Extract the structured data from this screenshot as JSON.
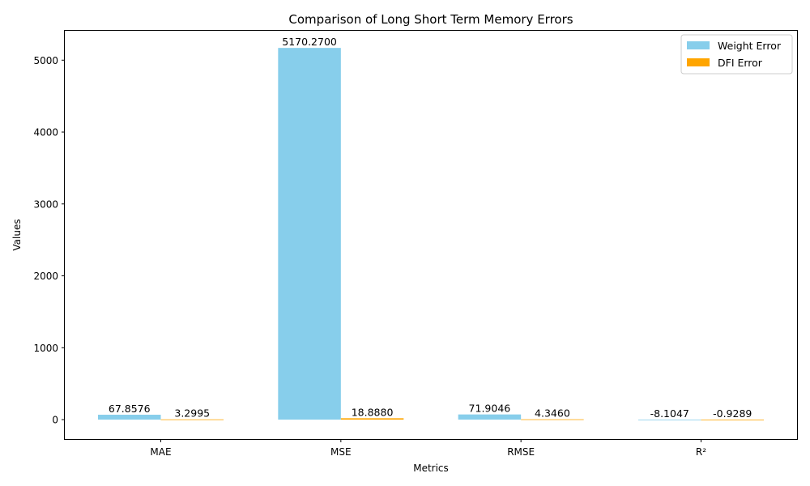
{
  "chart_data": {
    "type": "bar",
    "title": "Comparison of Long Short Term Memory Errors",
    "xlabel": "Metrics",
    "ylabel": "Values",
    "categories": [
      "MAE",
      "MSE",
      "RMSE",
      "R²"
    ],
    "series": [
      {
        "name": "Weight Error",
        "color": "#87CEEB",
        "values": [
          67.8576,
          5170.27,
          71.9046,
          -8.1047
        ],
        "labels": [
          "67.8576",
          "5170.2700",
          "71.9046",
          "-8.1047"
        ]
      },
      {
        "name": "DFI Error",
        "color": "#FFA500",
        "values": [
          3.2995,
          18.888,
          4.346,
          -0.9289
        ],
        "labels": [
          "3.2995",
          "18.8880",
          "4.3460",
          "-0.9289"
        ]
      }
    ],
    "ylim": [
      -270,
      5420
    ],
    "yticks": [
      0,
      1000,
      2000,
      3000,
      4000,
      5000
    ],
    "ytick_labels": [
      "0",
      "1000",
      "2000",
      "3000",
      "4000",
      "5000"
    ],
    "legend_position": "top-right",
    "grid": false
  }
}
